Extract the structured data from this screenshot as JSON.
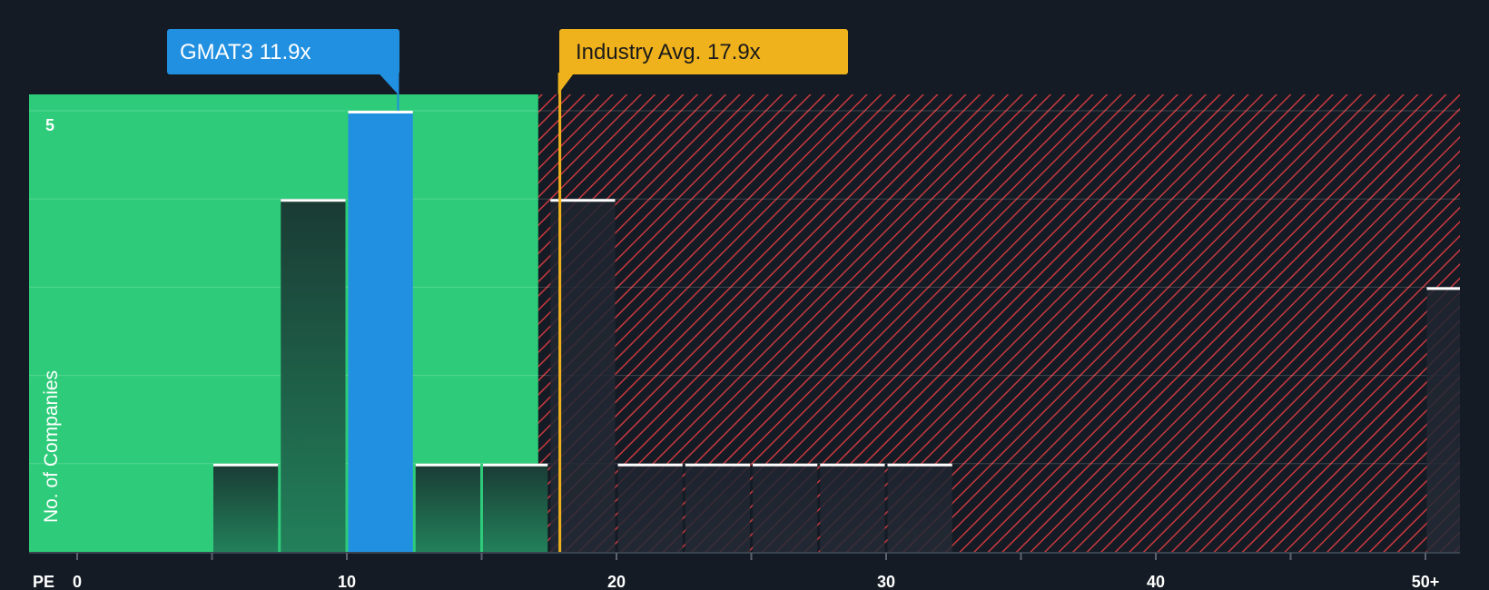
{
  "chart_data": {
    "type": "bar",
    "xlabel": "PE",
    "ylabel": "No. of Companies",
    "x_ticks": [
      "0",
      "10",
      "20",
      "30",
      "40",
      "50+"
    ],
    "y_ticks": [
      "5"
    ],
    "ylim": [
      0,
      5.2
    ],
    "xlim": [
      0,
      51.5
    ],
    "bin_width": 2.5,
    "bins": [
      {
        "start": 5,
        "end": 7.5,
        "value": 1
      },
      {
        "start": 7.5,
        "end": 10,
        "value": 4
      },
      {
        "start": 10,
        "end": 12.5,
        "value": 5,
        "highlight": true
      },
      {
        "start": 12.5,
        "end": 15,
        "value": 1
      },
      {
        "start": 15,
        "end": 17.5,
        "value": 1
      },
      {
        "start": 17.5,
        "end": 20,
        "value": 4
      },
      {
        "start": 20,
        "end": 22.5,
        "value": 1
      },
      {
        "start": 22.5,
        "end": 25,
        "value": 1
      },
      {
        "start": 25,
        "end": 27.5,
        "value": 1
      },
      {
        "start": 27.5,
        "end": 30,
        "value": 1
      },
      {
        "start": 30,
        "end": 32.5,
        "value": 1
      },
      {
        "start": 50,
        "end": 52.5,
        "value": 3
      }
    ],
    "fair_zone_end": 17.1,
    "company": {
      "label": "GMAT3 11.9x",
      "value": 11.9
    },
    "industry": {
      "label": "Industry Avg. 17.9x",
      "value": 17.9
    },
    "grid": true
  },
  "colors": {
    "background": "#151b24",
    "green_zone": "#2ecc7a",
    "red_hatch": "#c9393f",
    "company": "#2190e0",
    "industry": "#f0b21c",
    "bar_dark": "#1d3a38",
    "bar_top": "#ffffff"
  }
}
